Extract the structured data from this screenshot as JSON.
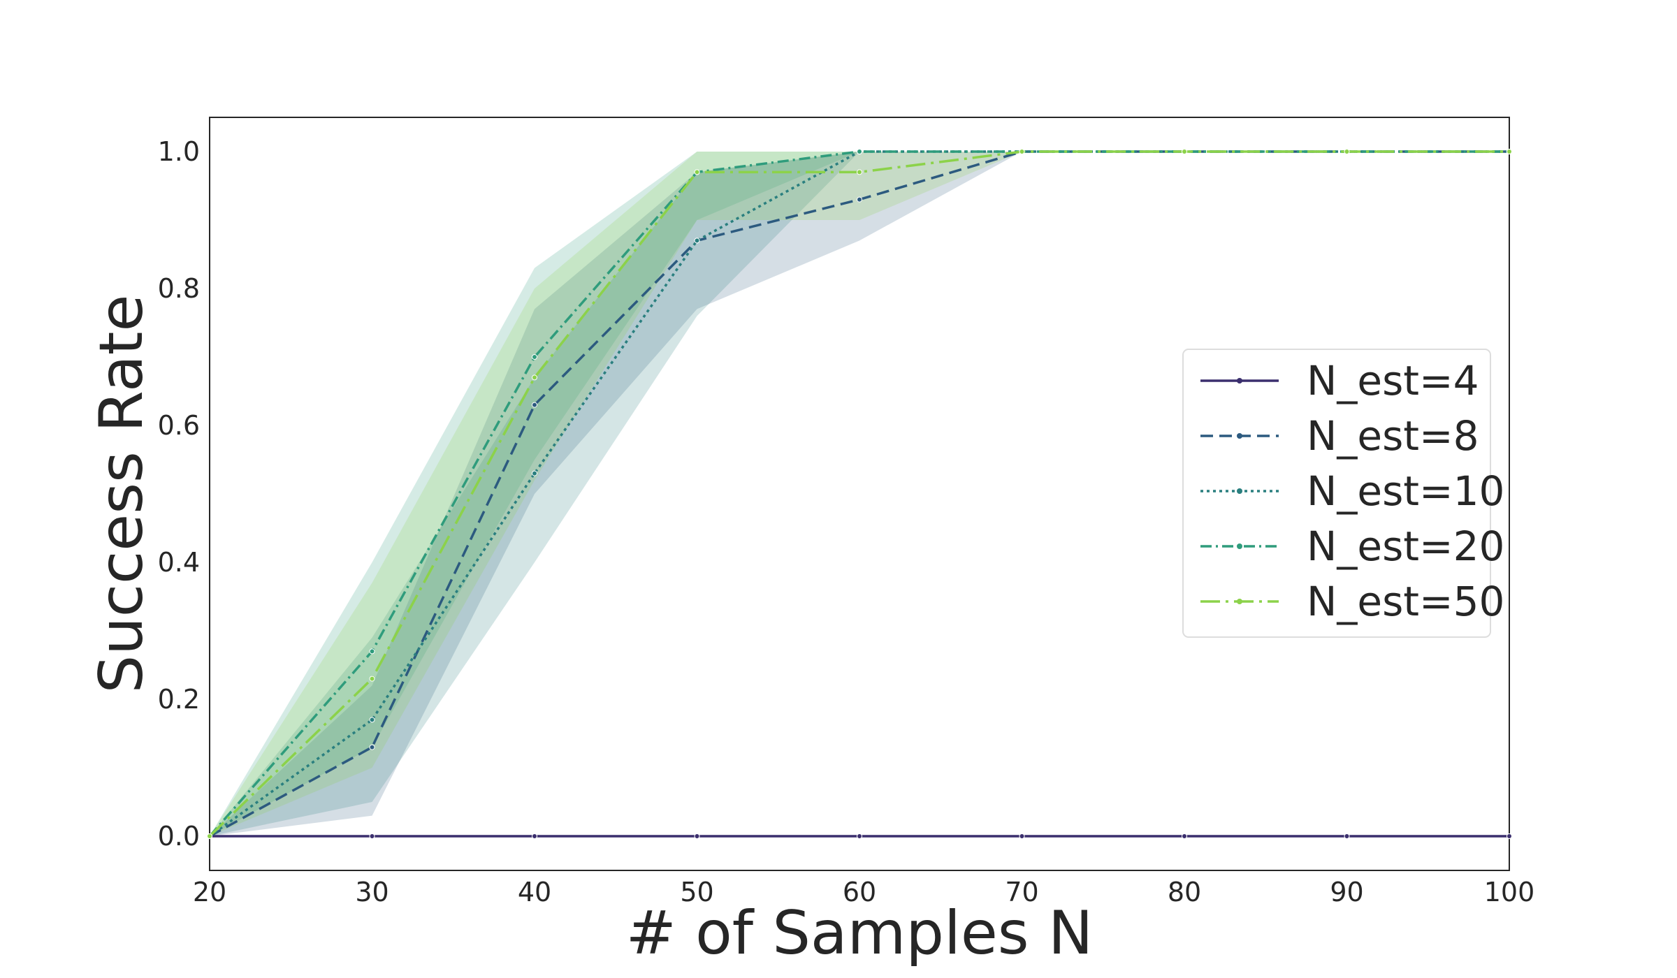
{
  "chart_data": {
    "type": "line",
    "title": "",
    "xlabel": "# of Samples N",
    "ylabel": "Success Rate",
    "xlim": [
      20,
      100
    ],
    "ylim": [
      -0.05,
      1.05
    ],
    "xticks": [
      "20",
      "30",
      "40",
      "50",
      "60",
      "70",
      "80",
      "90",
      "100"
    ],
    "yticks": [
      "0.0",
      "0.2",
      "0.4",
      "0.6",
      "0.8",
      "1.0"
    ],
    "grid": false,
    "legend_position": "center-right",
    "x": [
      20,
      30,
      40,
      50,
      60,
      70,
      80,
      90,
      100
    ],
    "series": [
      {
        "name": "N_est=4",
        "color": "#3b2f6e",
        "dash": "solid",
        "values": [
          0,
          0,
          0,
          0,
          0,
          0,
          0,
          0,
          0
        ],
        "lower": [
          0,
          0,
          0,
          0,
          0,
          0,
          0,
          0,
          0
        ],
        "upper": [
          0,
          0,
          0,
          0,
          0,
          0,
          0,
          0,
          0
        ]
      },
      {
        "name": "N_est=8",
        "color": "#2c5a7f",
        "dash": "dashed",
        "values": [
          0,
          0.13,
          0.63,
          0.87,
          0.93,
          1,
          1,
          1,
          1
        ],
        "lower": [
          0,
          0.03,
          0.5,
          0.77,
          0.87,
          1,
          1,
          1,
          1
        ],
        "upper": [
          0,
          0.22,
          0.77,
          0.97,
          1,
          1,
          1,
          1,
          1
        ]
      },
      {
        "name": "N_est=10",
        "color": "#2a7f7f",
        "dash": "dotted",
        "values": [
          0,
          0.17,
          0.53,
          0.87,
          1,
          1,
          1,
          1,
          1
        ],
        "lower": [
          0,
          0.05,
          0.4,
          0.76,
          1,
          1,
          1,
          1,
          1
        ],
        "upper": [
          0,
          0.29,
          0.67,
          0.97,
          1,
          1,
          1,
          1,
          1
        ]
      },
      {
        "name": "N_est=20",
        "color": "#2f9c7c",
        "dash": "dashdot",
        "values": [
          0,
          0.27,
          0.7,
          0.97,
          1,
          1,
          1,
          1,
          1
        ],
        "lower": [
          0,
          0.13,
          0.55,
          0.9,
          1,
          1,
          1,
          1,
          1
        ],
        "upper": [
          0,
          0.4,
          0.83,
          1,
          1,
          1,
          1,
          1,
          1
        ]
      },
      {
        "name": "N_est=50",
        "color": "#8cd24a",
        "dash": "longdashdot",
        "values": [
          0,
          0.23,
          0.67,
          0.97,
          0.97,
          1,
          1,
          1,
          1
        ],
        "lower": [
          0,
          0.1,
          0.52,
          0.9,
          0.9,
          1,
          1,
          1,
          1
        ],
        "upper": [
          0,
          0.37,
          0.8,
          1,
          1,
          1,
          1,
          1,
          1
        ]
      }
    ]
  }
}
